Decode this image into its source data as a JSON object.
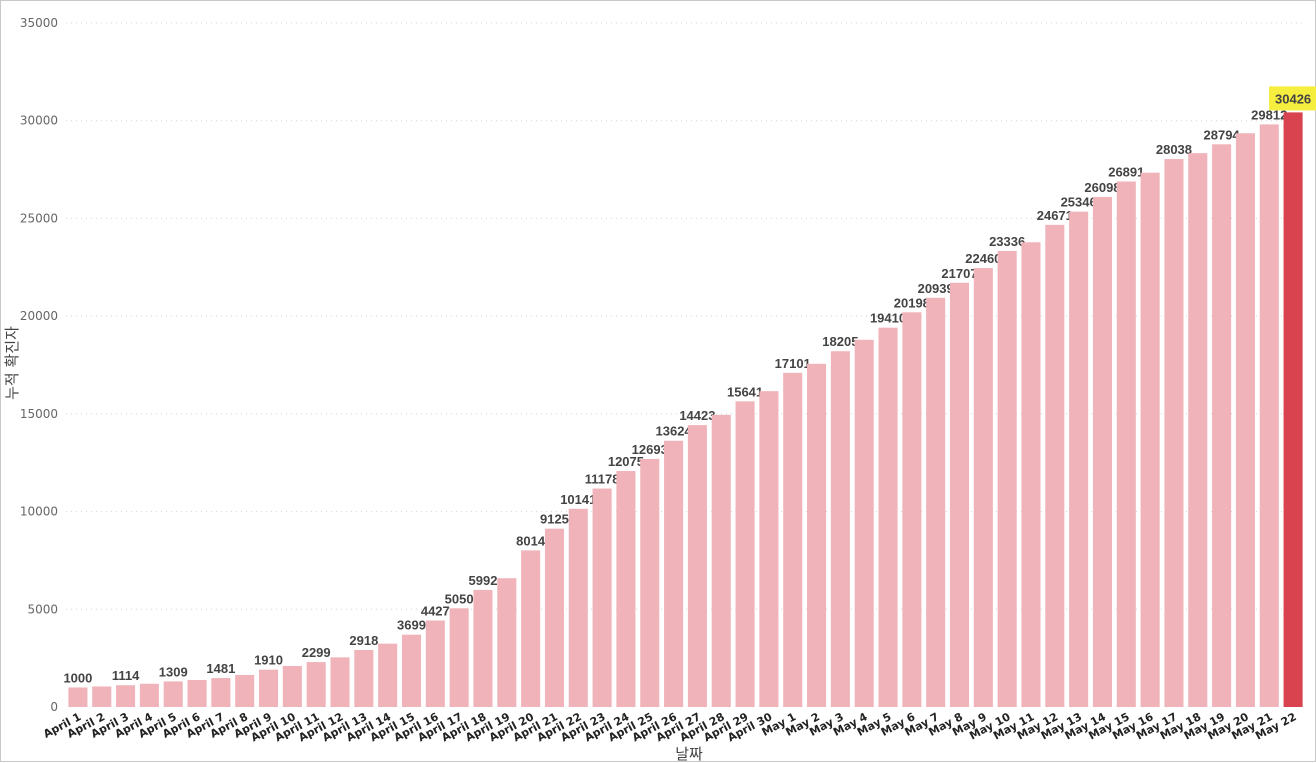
{
  "chart_data": {
    "type": "bar",
    "xlabel": "날짜",
    "ylabel": "누적 확진자",
    "ylim": [
      0,
      35000
    ],
    "yticks": [
      0,
      5000,
      10000,
      15000,
      20000,
      25000,
      30000,
      35000
    ],
    "grid": true,
    "legend": "none",
    "colors": {
      "bar": "#f0b3b9",
      "highlight_bar": "#d9434f",
      "highlight_label_bg": "#f5ee3f"
    },
    "highlight_index": 51,
    "categories": [
      "April 1",
      "April 2",
      "April 3",
      "April 4",
      "April 5",
      "April 6",
      "April 7",
      "April 8",
      "April 9",
      "April 10",
      "April 11",
      "April 12",
      "April 13",
      "April 14",
      "April 15",
      "April 16",
      "April 17",
      "April 18",
      "April 19",
      "April 20",
      "April 21",
      "April 22",
      "April 23",
      "April 24",
      "April 25",
      "April 26",
      "April 27",
      "April 28",
      "April 29",
      "April 30",
      "May 1",
      "May 2",
      "May 3",
      "May 4",
      "May 5",
      "May 6",
      "May 7",
      "May 8",
      "May 9",
      "May 10",
      "May 11",
      "May 12",
      "May 13",
      "May 14",
      "May 15",
      "May 16",
      "May 17",
      "May 18",
      "May 19",
      "May 20",
      "May 21",
      "May 22"
    ],
    "values": [
      1000,
      1050,
      1114,
      1190,
      1309,
      1380,
      1481,
      1640,
      1910,
      2100,
      2299,
      2540,
      2918,
      3240,
      3699,
      4427,
      5050,
      5992,
      6590,
      8014,
      9125,
      10141,
      11178,
      12075,
      12693,
      13624,
      14423,
      14950,
      15641,
      16160,
      17101,
      17560,
      18205,
      18790,
      19410,
      20198,
      20939,
      21707,
      22460,
      23336,
      23780,
      24671,
      25346,
      26098,
      26891,
      27340,
      28038,
      28340,
      28794,
      29360,
      29812,
      30426
    ],
    "labeled_indices": [
      0,
      2,
      4,
      6,
      8,
      10,
      12,
      14,
      15,
      16,
      17,
      19,
      20,
      21,
      22,
      23,
      24,
      25,
      26,
      28,
      30,
      32,
      34,
      35,
      36,
      37,
      38,
      39,
      41,
      42,
      43,
      44,
      46,
      48,
      50,
      51
    ]
  }
}
